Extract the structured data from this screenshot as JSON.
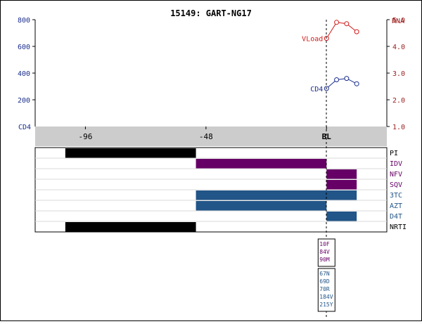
{
  "title": "15149: GART-NG17",
  "chart_data": [
    {
      "type": "line",
      "title": "15149: GART-NG17",
      "left_axis": {
        "label": "CD4",
        "ticks": [
          200,
          400,
          600,
          800
        ],
        "range": [
          0,
          800
        ],
        "color": "#1a2e8c"
      },
      "right_axis": {
        "label": "RNA",
        "ticks": [
          "1.0",
          "2.0",
          "3.0",
          "4.0",
          "5.0"
        ],
        "range": [
          1.0,
          5.0
        ],
        "color": "#9b1c1c"
      },
      "x_axis": {
        "ticks": [
          {
            "value": -96,
            "label": "-96"
          },
          {
            "value": -48,
            "label": "-48"
          },
          {
            "value": 0,
            "label": "BL"
          }
        ],
        "range": [
          -116,
          24
        ]
      },
      "series": [
        {
          "name": "VLoad",
          "axis": "right",
          "color": "#d11a1a",
          "x": [
            0,
            4,
            8,
            12
          ],
          "y": [
            4.3,
            4.9,
            4.85,
            4.55
          ]
        },
        {
          "name": "CD4",
          "axis": "left",
          "color": "#1a2e8c",
          "x": [
            0,
            4,
            8,
            12
          ],
          "y": [
            285,
            350,
            360,
            320
          ]
        }
      ],
      "baseline_x": 0,
      "grid": false
    },
    {
      "type": "timeline",
      "rows": [
        {
          "label": "PI",
          "color": "#000000",
          "segments": [
            [
              -104,
              -52
            ]
          ]
        },
        {
          "label": "IDV",
          "color": "#660066",
          "segments": [
            [
              -52,
              0
            ]
          ]
        },
        {
          "label": "NFV",
          "color": "#660066",
          "segments": [
            [
              0,
              12
            ]
          ]
        },
        {
          "label": "SQV",
          "color": "#660066",
          "segments": [
            [
              0,
              12
            ]
          ]
        },
        {
          "label": "3TC",
          "color": "#225588",
          "segments": [
            [
              -52,
              12
            ]
          ]
        },
        {
          "label": "AZT",
          "color": "#225588",
          "segments": [
            [
              -52,
              0
            ]
          ]
        },
        {
          "label": "D4T",
          "color": "#225588",
          "segments": [
            [
              0,
              12
            ]
          ]
        },
        {
          "label": "NRTI",
          "color": "#000000",
          "segments": [
            [
              -104,
              -52
            ]
          ]
        }
      ]
    }
  ],
  "mutations": {
    "pi": {
      "color": "#660066",
      "items": [
        "10F",
        "84V",
        "90M"
      ]
    },
    "rt": {
      "color": "#225588",
      "items": [
        "67N",
        "69D",
        "70R",
        "184V",
        "215Y"
      ]
    }
  }
}
